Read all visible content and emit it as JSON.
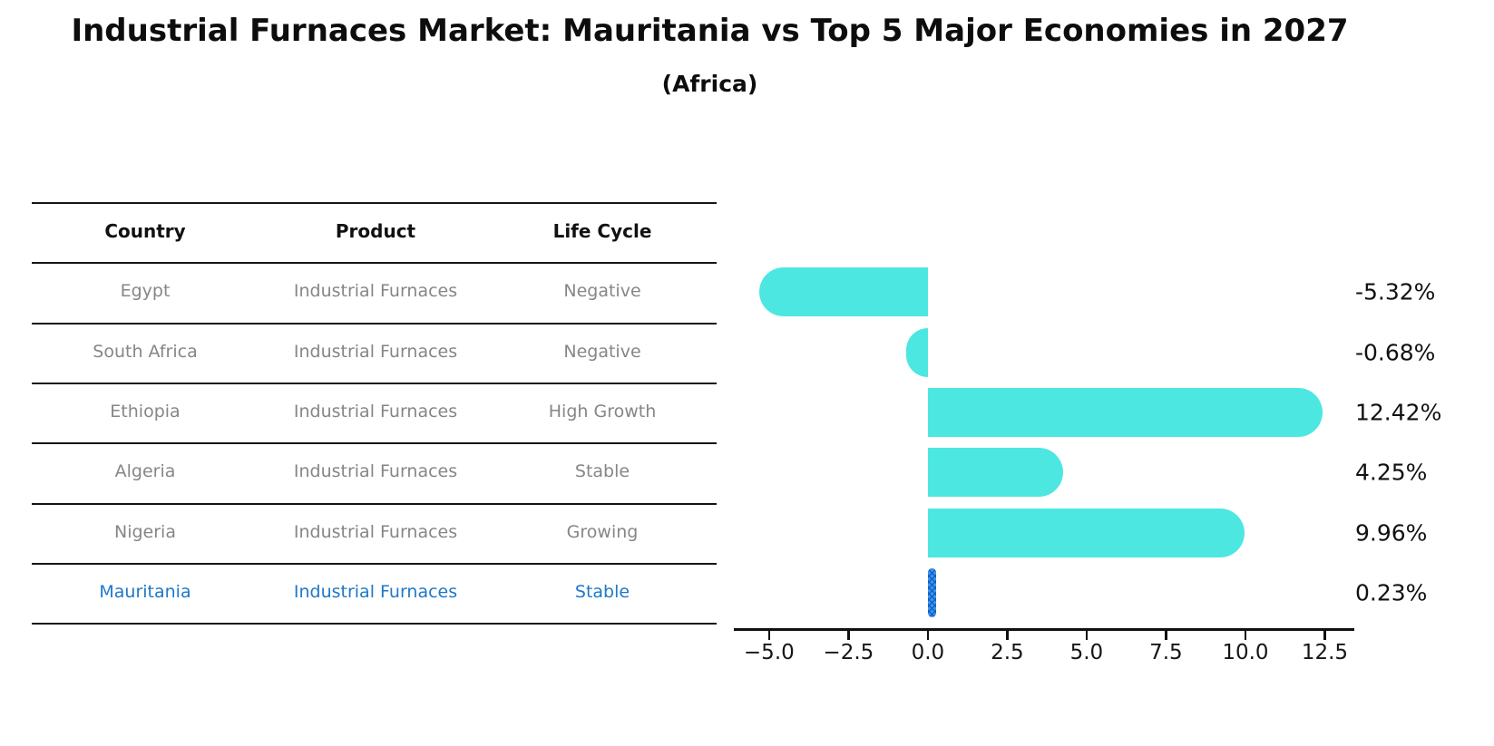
{
  "title": "Industrial Furnaces Market: Mauritania vs Top 5 Major Economies in 2027",
  "subtitle": "(Africa)",
  "colors": {
    "bar": "#4ce7e1",
    "highlight_bar": "#3e97e8",
    "highlight_hatch": "#1668cc",
    "row_text": "#868686",
    "highlight_text": "#1e78c8",
    "axis": "#111111"
  },
  "table": {
    "headers": [
      "Country",
      "Product",
      "Life Cycle"
    ],
    "rows": [
      {
        "country": "Egypt",
        "product": "Industrial Furnaces",
        "life_cycle": "Negative",
        "highlight": false
      },
      {
        "country": "South Africa",
        "product": "Industrial Furnaces",
        "life_cycle": "Negative",
        "highlight": false
      },
      {
        "country": "Ethiopia",
        "product": "Industrial Furnaces",
        "life_cycle": "High Growth",
        "highlight": false
      },
      {
        "country": "Algeria",
        "product": "Industrial Furnaces",
        "life_cycle": "Stable",
        "highlight": false
      },
      {
        "country": "Nigeria",
        "product": "Industrial Furnaces",
        "life_cycle": "Growing",
        "highlight": false
      },
      {
        "country": "Mauritania",
        "product": "Industrial Furnaces",
        "life_cycle": "Stable",
        "highlight": true
      }
    ]
  },
  "chart_data": {
    "type": "bar",
    "orientation": "horizontal",
    "title": "Industrial Furnaces Market: Mauritania vs Top 5 Major Economies in 2027",
    "subtitle": "(Africa)",
    "categories": [
      "Egypt",
      "South Africa",
      "Ethiopia",
      "Algeria",
      "Nigeria",
      "Mauritania"
    ],
    "values": [
      -5.32,
      -0.68,
      12.42,
      4.25,
      9.96,
      0.23
    ],
    "value_labels": [
      "-5.32%",
      "-0.68%",
      "12.42%",
      "4.25%",
      "9.96%",
      "0.23%"
    ],
    "xlabel": "",
    "ylabel": "",
    "xlim": [
      -6.11,
      13.43
    ],
    "xticks": [
      -5.0,
      -2.5,
      0.0,
      2.5,
      5.0,
      7.5,
      10.0,
      12.5
    ],
    "xtick_labels": [
      "−5.0",
      "−2.5",
      "0.0",
      "2.5",
      "5.0",
      "7.5",
      "10.0",
      "12.5"
    ],
    "grid": false,
    "legend": "none",
    "highlight_category": "Mauritania"
  }
}
